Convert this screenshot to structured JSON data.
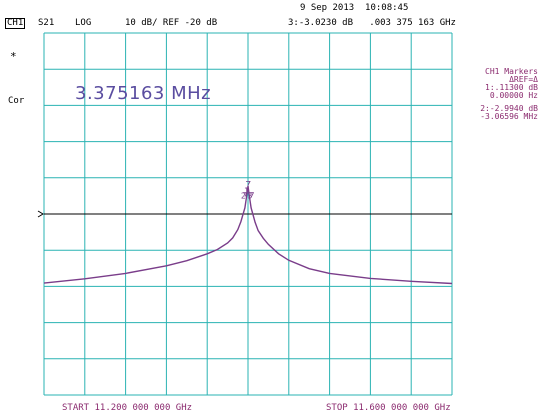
{
  "header": {
    "datetime": "9 Sep 2013  10:08:45",
    "channel": "CH1",
    "parameter": "S21",
    "format": "LOG",
    "scale": "10 dB/ REF -20 dB",
    "marker_readout": "3:-3.0230 dB   .003 375 163 GHz"
  },
  "left_labels": {
    "star": "*",
    "cor": "Cor"
  },
  "big_readout": "3.375163 MHz",
  "right_panel": {
    "title": "CH1 Markers",
    "delta_ref": "ΔREF=Δ",
    "m1_value": "1:.11300 dB",
    "m1_freq": "0.00000 Hz",
    "m2_value": "2:-2.9940 dB",
    "m2_freq": "-3.06596 MHz"
  },
  "footer": {
    "start": "START 11.200 000 000 GHz",
    "stop": "STOP 11.600 000 000 GHz"
  },
  "colors": {
    "grid": "#2ab3b3",
    "trace": "#7a3d8a",
    "reference_line": "#000000",
    "text_accent": "#8b2b6f",
    "readout": "#5a4da0"
  },
  "chart_data": {
    "type": "line",
    "x_range": [
      11.2,
      11.6
    ],
    "x_unit": "GHz",
    "y_scale_per_div": 10,
    "y_reference": -20,
    "y_unit": "dB",
    "grid": true,
    "grid_divisions": {
      "x": 10,
      "y": 10
    },
    "series": [
      {
        "x": [
          11.2,
          11.24,
          11.28,
          11.32,
          11.34,
          11.36,
          11.37,
          11.38,
          11.385,
          11.39,
          11.393,
          11.397,
          11.399,
          11.4,
          11.401,
          11.403,
          11.407,
          11.41,
          11.415,
          11.42,
          11.43,
          11.44,
          11.46,
          11.48,
          11.52,
          11.56,
          11.6
        ],
        "y": [
          -39.1,
          -37.9,
          -36.4,
          -34.3,
          -32.9,
          -31.0,
          -29.8,
          -28.0,
          -26.6,
          -24.3,
          -22.1,
          -18.3,
          -14.4,
          -12.2,
          -14.4,
          -18.3,
          -22.3,
          -24.6,
          -26.7,
          -28.4,
          -31.0,
          -32.8,
          -35.1,
          -36.4,
          -37.8,
          -38.6,
          -39.2
        ]
      }
    ],
    "markers": [
      {
        "label": "1",
        "value_db": 0.113,
        "freq_offset_hz": 0
      },
      {
        "label": "2",
        "value_db": -2.994,
        "freq_offset_hz": -3065960
      },
      {
        "label": "3",
        "value_db": -3.023,
        "freq_offset_hz": 3375163
      }
    ]
  }
}
